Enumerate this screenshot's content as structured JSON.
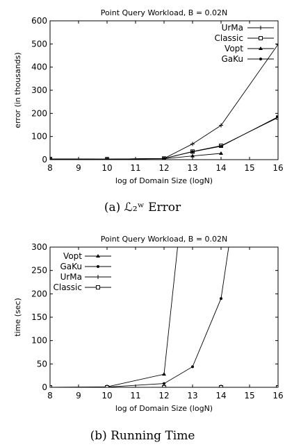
{
  "chart_data": [
    {
      "type": "line",
      "title": "Point Query Workload, B = 0.02N",
      "xlabel": "log of Domain Size (logN)",
      "ylabel": "error (in thousands)",
      "xlim": [
        8,
        16
      ],
      "ylim": [
        0,
        600
      ],
      "xticks": [
        "8",
        "9",
        "10",
        "11",
        "12",
        "13",
        "14",
        "15",
        "16"
      ],
      "yticks": [
        "0",
        "100",
        "200",
        "300",
        "400",
        "500",
        "600"
      ],
      "grid": false,
      "legend_position": "top-right",
      "series": [
        {
          "name": "UrMa",
          "marker": "plus",
          "x": [
            8,
            10,
            12,
            13,
            14,
            16
          ],
          "y": [
            3,
            2,
            5,
            68,
            148,
            498
          ]
        },
        {
          "name": "Classic",
          "marker": "square",
          "x": [
            8,
            10,
            12,
            13,
            14,
            16
          ],
          "y": [
            3,
            2,
            5,
            35,
            60,
            182
          ]
        },
        {
          "name": "Vopt",
          "marker": "triangle",
          "x": [
            8,
            10,
            12,
            13,
            14
          ],
          "y": [
            3,
            2,
            4,
            16,
            27
          ]
        },
        {
          "name": "GaKu",
          "marker": "dot",
          "x": [
            8,
            10,
            12,
            13,
            14,
            16
          ],
          "y": [
            3,
            2,
            5,
            34,
            58,
            185
          ]
        }
      ]
    },
    {
      "type": "line",
      "title": "Point Query Workload, B = 0.02N",
      "xlabel": "log of Domain Size (logN)",
      "ylabel": "time (sec)",
      "xlim": [
        8,
        16
      ],
      "ylim": [
        0,
        300
      ],
      "xticks": [
        "8",
        "9",
        "10",
        "11",
        "12",
        "13",
        "14",
        "15",
        "16"
      ],
      "yticks": [
        "0",
        "50",
        "100",
        "150",
        "200",
        "250",
        "300"
      ],
      "grid": false,
      "legend_position": "top-left",
      "series": [
        {
          "name": "Vopt",
          "marker": "triangle",
          "x": [
            8,
            10,
            12,
            13
          ],
          "y": [
            0,
            1,
            28,
            600
          ]
        },
        {
          "name": "GaKu",
          "marker": "dot",
          "x": [
            8,
            10,
            12,
            13,
            14,
            15
          ],
          "y": [
            0,
            0.5,
            8,
            44,
            190,
            600
          ]
        },
        {
          "name": "UrMa",
          "marker": "plus",
          "x": [
            8,
            10,
            12,
            14,
            16
          ],
          "y": [
            0,
            0,
            0,
            0,
            0
          ]
        },
        {
          "name": "Classic",
          "marker": "square",
          "x": [
            8,
            10,
            12,
            14,
            16
          ],
          "y": [
            0,
            0,
            0,
            0,
            0
          ]
        }
      ]
    }
  ],
  "captions": {
    "a": "(a) ℒ₂ʷ Error",
    "b": "(b) Running Time"
  }
}
